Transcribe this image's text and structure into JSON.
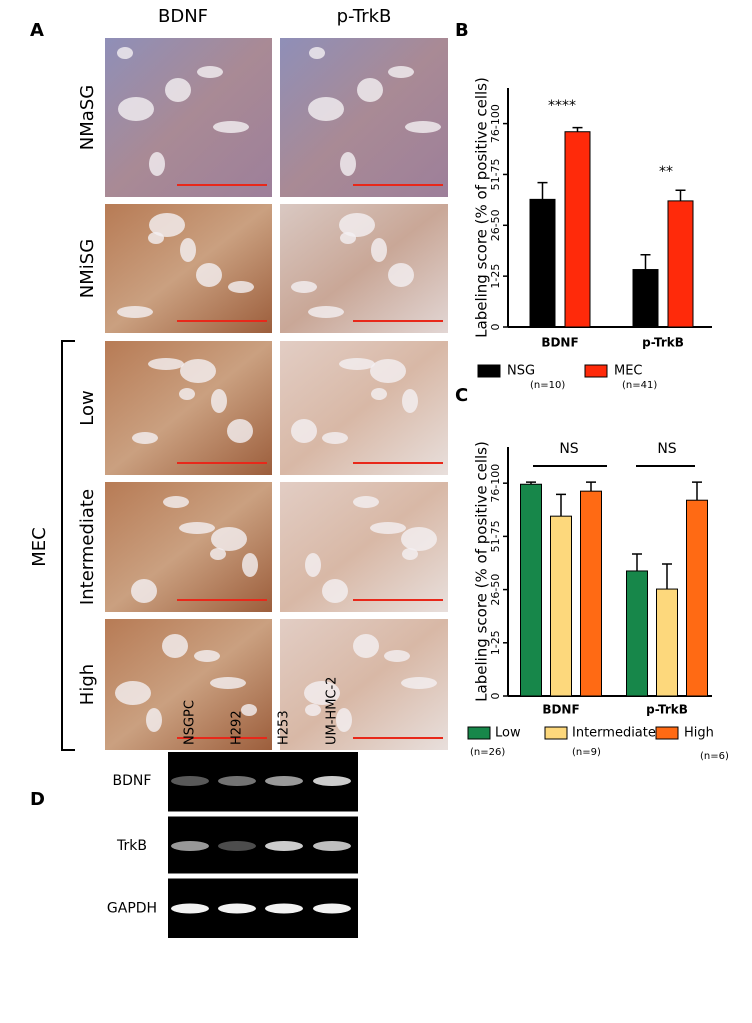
{
  "panel_a": {
    "label": "A",
    "columns": [
      "BDNF",
      "p-TrkB"
    ],
    "rows": [
      "NMaSG",
      "NMiSG",
      "Low",
      "Intermediate",
      "High"
    ],
    "group": "MEC"
  },
  "chart_data": [
    {
      "type": "bar",
      "panel_label": "B",
      "y_label": "Labeling score (% of positive cells)",
      "categories": [
        "BDNF",
        "p-TrkB"
      ],
      "ylim": [
        0,
        4.7
      ],
      "yticks": [
        0,
        {
          "value": 1,
          "label": "1-25"
        },
        {
          "value": 2,
          "label": "26-50"
        },
        {
          "value": 3,
          "label": "51-75"
        },
        {
          "value": 4,
          "label": "76-100"
        }
      ],
      "series": [
        {
          "name": "NSG",
          "n_label": "(n=10)",
          "color": "#000000",
          "values": [
            2.51,
            1.13
          ],
          "errors": [
            0.33,
            0.29
          ]
        },
        {
          "name": "MEC",
          "n_label": "(n=41)",
          "color": "#ff2a0a",
          "values": [
            3.84,
            2.48
          ],
          "errors": [
            0.08,
            0.21
          ]
        }
      ],
      "annotations": [
        "****",
        "**"
      ]
    },
    {
      "type": "bar",
      "panel_label": "C",
      "y_label": "Labeling score (% of positive cells)",
      "categories": [
        "BDNF",
        "p-TrkB"
      ],
      "ylim": [
        0,
        4.68
      ],
      "yticks": [
        0,
        {
          "value": 1,
          "label": "1-25"
        },
        {
          "value": 2,
          "label": "26-50"
        },
        {
          "value": 3,
          "label": "51-75"
        },
        {
          "value": 4,
          "label": "76-100"
        }
      ],
      "series": [
        {
          "name": "Low",
          "n_label": "(n=26)",
          "color": "#17874a",
          "values": [
            3.98,
            2.35
          ],
          "errors": [
            0.04,
            0.32
          ]
        },
        {
          "name": "Intermediate",
          "n_label": "(n=9)",
          "color": "#fdd87c",
          "values": [
            3.38,
            2.01
          ],
          "errors": [
            0.41,
            0.47
          ]
        },
        {
          "name": "High",
          "n_label": "(n=6)",
          "color": "#ff6a14",
          "values": [
            3.85,
            3.68
          ],
          "errors": [
            0.17,
            0.34
          ]
        }
      ],
      "annotations": [
        "NS",
        "NS"
      ]
    }
  ],
  "panel_d": {
    "label": "D",
    "lanes": [
      "NSGPC",
      "H292",
      "H253",
      "UM-HMC-2"
    ],
    "rows": [
      "BDNF",
      "TrkB",
      "GAPDH"
    ]
  }
}
